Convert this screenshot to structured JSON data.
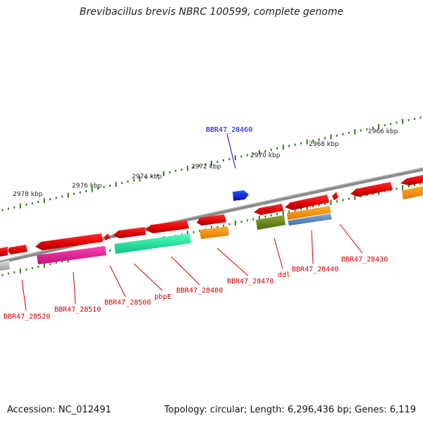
{
  "header": {
    "title": "Brevibacillus brevis NBRC 100599, complete genome"
  },
  "footer": {
    "accession": "Accession: NC_012491",
    "topology": "Topology: circular; Length: 6,296,436 bp; Genes: 6,119"
  },
  "colors": {
    "backbone": "#8a8a8a",
    "tick": "#2e7d1a",
    "label_red": "#cc0000",
    "label_blue": "#0000cc"
  },
  "ruler": {
    "ticks": [
      "2978 kbp",
      "2976 kbp",
      "2974 kbp",
      "2972 kbp",
      "2970 kbp",
      "2968 kbp",
      "2966 kbp"
    ]
  },
  "genes": [
    {
      "label": "BBR47_28520",
      "color": "#cc0000"
    },
    {
      "label": "BBR47_28510",
      "color": "#cc0000"
    },
    {
      "label": "BBR47_28500",
      "color": "#cc0000"
    },
    {
      "label": "pbpE",
      "color": "#cc0000"
    },
    {
      "label": "BBR47_28480",
      "color": "#cc0000"
    },
    {
      "label": "BBR47_28470",
      "color": "#cc0000"
    },
    {
      "label": "ddl",
      "color": "#cc0000"
    },
    {
      "label": "BBR47_28440",
      "color": "#cc0000"
    },
    {
      "label": "BBR47_28430",
      "color": "#cc0000"
    },
    {
      "label": "BBR47_28460",
      "color": "#0000cc"
    }
  ]
}
